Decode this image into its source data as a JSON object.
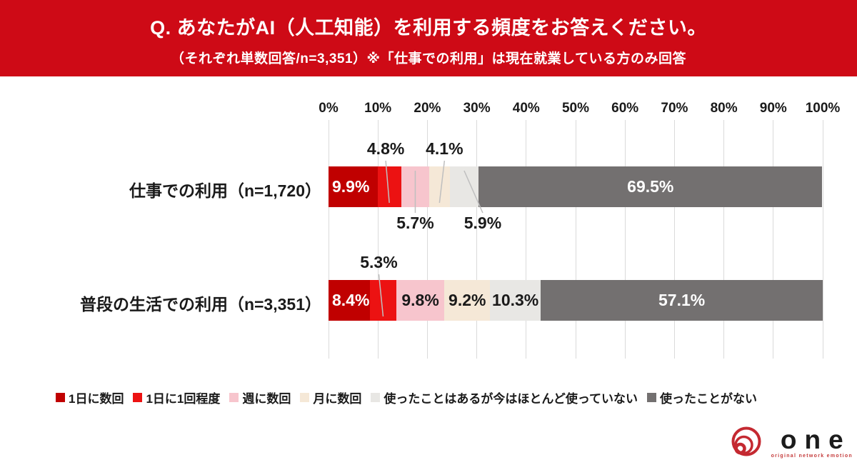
{
  "header": {
    "title": "Q. あなたがAI（人工知能）を利用する頻度をお答えください。",
    "subtitle": "（それぞれ単数回答/n=3,351）※「仕事での利用」は現在就業している方のみ回答",
    "bg_color": "#CE0A16"
  },
  "chart_data": {
    "type": "bar",
    "subtype": "horizontal-stacked-100pct",
    "title": "",
    "xlabel": "",
    "ylabel": "",
    "axis_range": [
      0,
      100
    ],
    "grid": true,
    "x_ticks": [
      "0%",
      "10%",
      "20%",
      "30%",
      "40%",
      "50%",
      "60%",
      "70%",
      "80%",
      "90%",
      "100%"
    ],
    "categories": [
      "1日に数回",
      "1日に1回程度",
      "週に数回",
      "月に数回",
      "使ったことはあるが今はほとんど使っていない",
      "使ったことがない"
    ],
    "colors": [
      "#C00000",
      "#EC1212",
      "#F7C5CD",
      "#F5E8D7",
      "#E8E7E4",
      "#737070"
    ],
    "rows": [
      {
        "label": "仕事での利用（n=1,720）",
        "values": [
          9.9,
          4.8,
          5.7,
          4.1,
          5.9,
          69.5
        ],
        "value_labels": [
          "9.9%",
          "4.8%",
          "5.7%",
          "4.1%",
          "5.9%",
          "69.5%"
        ],
        "placements": [
          "inside-left",
          "above",
          "below",
          "above",
          "below",
          "inside-center"
        ],
        "label_colors": [
          "#FFFFFF",
          "#1a1a1a",
          "#1a1a1a",
          "#1a1a1a",
          "#1a1a1a",
          "#FFFFFF"
        ],
        "label_dx": [
          0,
          -5,
          0,
          7,
          26,
          0
        ]
      },
      {
        "label": "普段の生活での利用（n=3,351）",
        "values": [
          8.4,
          5.3,
          9.8,
          9.2,
          10.3,
          57.1
        ],
        "value_labels": [
          "8.4%",
          "5.3%",
          "9.8%",
          "9.2%",
          "10.3%",
          "57.1%"
        ],
        "placements": [
          "inside-left",
          "above",
          "inside-center",
          "inside-center",
          "inside-center",
          "inside-center"
        ],
        "label_colors": [
          "#FFFFFF",
          "#1a1a1a",
          "#1a1a1a",
          "#1a1a1a",
          "#1a1a1a",
          "#FFFFFF"
        ],
        "label_dx": [
          0,
          -6,
          0,
          0,
          0,
          0
        ]
      }
    ],
    "legend_position": "bottom"
  },
  "legend": [
    {
      "label": "1日に数回",
      "color": "#C00000"
    },
    {
      "label": "1日に1回程度",
      "color": "#EC1212"
    },
    {
      "label": "週に数回",
      "color": "#F7C5CD"
    },
    {
      "label": "月に数回",
      "color": "#F5E8D7"
    },
    {
      "label": "使ったことはあるが今はほとんど使っていない",
      "color": "#E8E7E4"
    },
    {
      "label": "使ったことがない",
      "color": "#737070"
    }
  ],
  "logo": {
    "name": "one",
    "tagline": "original network emotion",
    "accent_color": "#C42931"
  }
}
